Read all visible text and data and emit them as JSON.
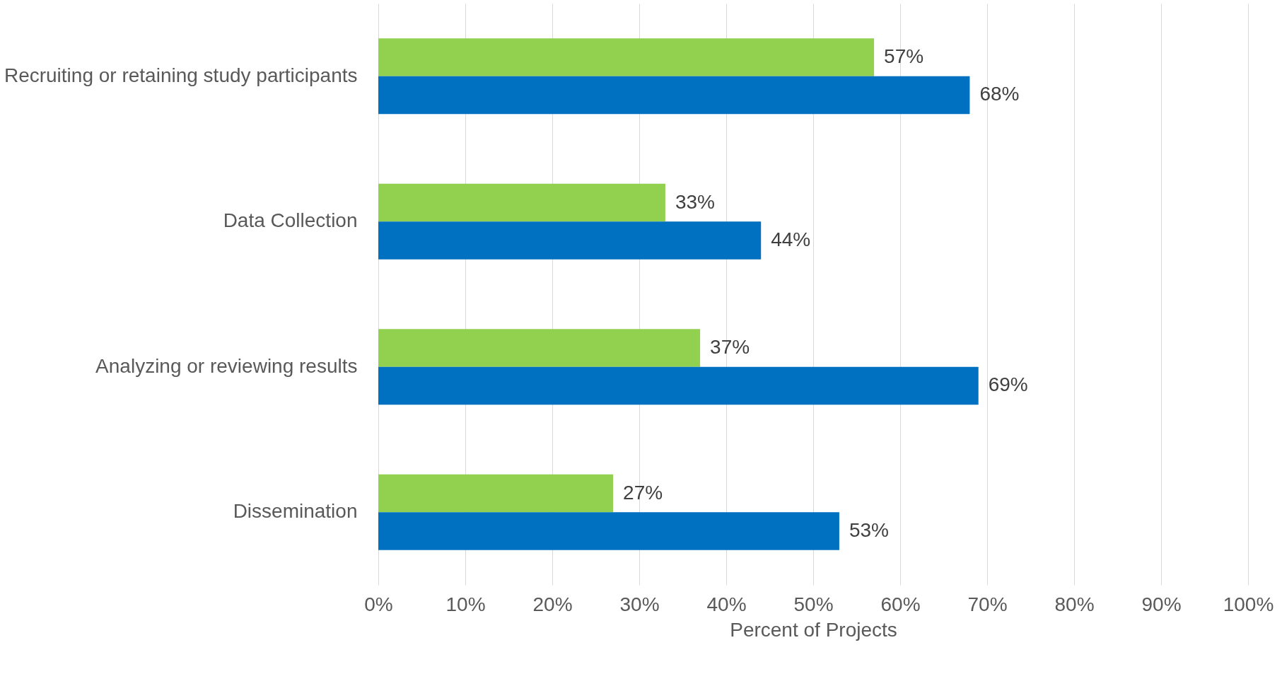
{
  "chart_data": {
    "type": "bar",
    "orientation": "horizontal",
    "xlabel": "Percent of Projects",
    "categories": [
      "Recruiting or retaining study participants",
      "Data Collection",
      "Analyzing or reviewing results",
      "Dissemination"
    ],
    "series": [
      {
        "color": "#92d050",
        "values": [
          57,
          33,
          37,
          27
        ],
        "value_labels": [
          "57%",
          "33%",
          "37%",
          "27%"
        ]
      },
      {
        "color": "#0070c0",
        "values": [
          68,
          44,
          69,
          53
        ],
        "value_labels": [
          "68%",
          "44%",
          "69%",
          "53%"
        ]
      }
    ],
    "xlim": [
      0,
      100
    ],
    "xticks": [
      {
        "value": 0,
        "label": "0%"
      },
      {
        "value": 10,
        "label": "10%"
      },
      {
        "value": 20,
        "label": "20%"
      },
      {
        "value": 30,
        "label": "30%"
      },
      {
        "value": 40,
        "label": "40%"
      },
      {
        "value": 50,
        "label": "50%"
      },
      {
        "value": 60,
        "label": "60%"
      },
      {
        "value": 70,
        "label": "70%"
      },
      {
        "value": 80,
        "label": "80%"
      },
      {
        "value": 90,
        "label": "90%"
      },
      {
        "value": 100,
        "label": "100%"
      }
    ],
    "grid": "x"
  }
}
